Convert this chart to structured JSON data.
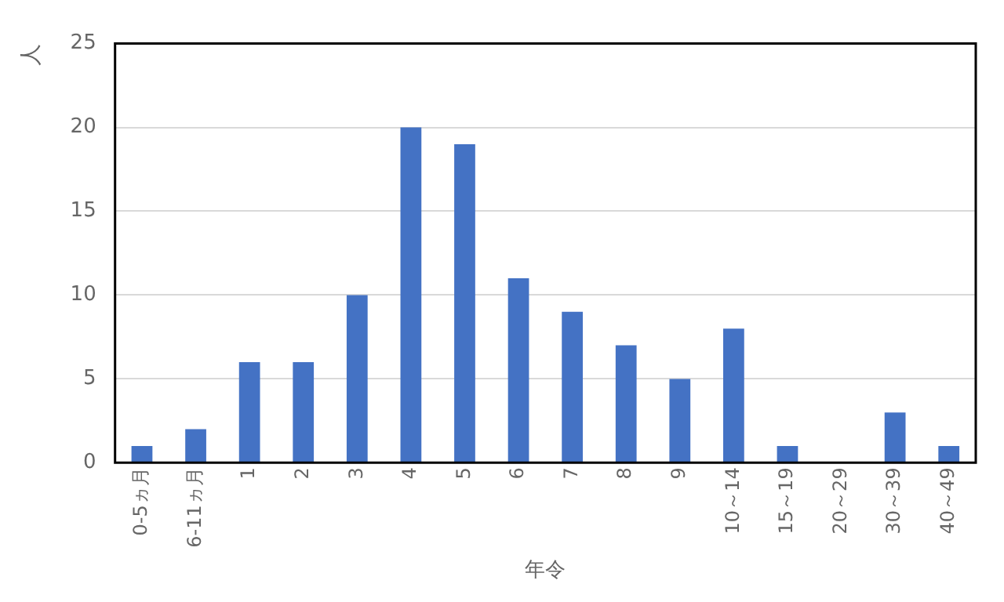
{
  "chart_data": {
    "type": "bar",
    "xlabel": "年令",
    "ylabel": "人",
    "categories": [
      "0-5ヵ月",
      "6-11ヵ月",
      "1",
      "2",
      "3",
      "4",
      "5",
      "6",
      "7",
      "8",
      "9",
      "10～14",
      "15～19",
      "20～29",
      "30～39",
      "40～49"
    ],
    "values": [
      1,
      2,
      6,
      6,
      10,
      20,
      19,
      11,
      9,
      7,
      5,
      8,
      1,
      0,
      3,
      1
    ],
    "color": "#4472c4",
    "ylim": [
      0,
      25
    ],
    "yticks": [
      0,
      5,
      10,
      15,
      20,
      25
    ],
    "grid": "y",
    "legend": false
  }
}
